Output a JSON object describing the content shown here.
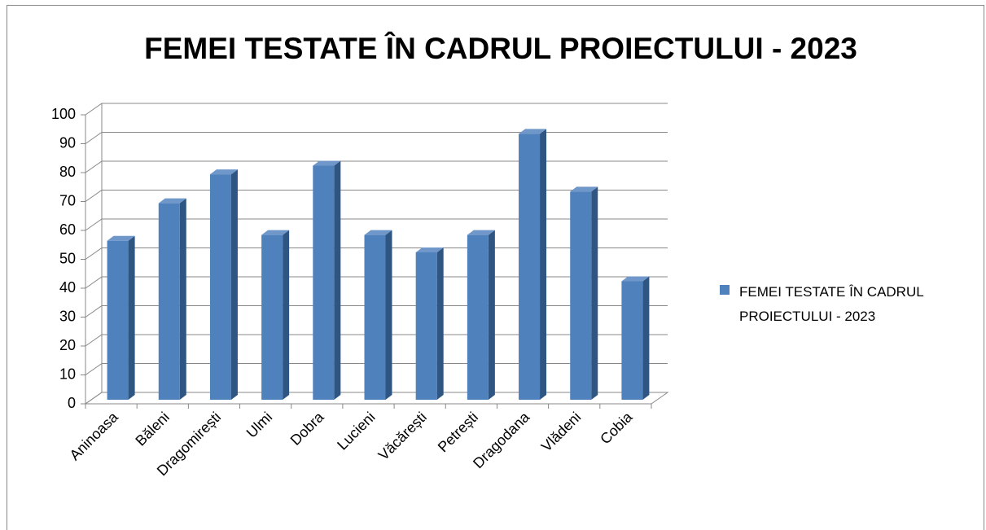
{
  "chart_data": {
    "type": "bar3d",
    "title": "FEMEI TESTATE ÎN CADRUL PROIECTULUI - 2023",
    "categories": [
      "Aninoasa",
      "Băleni",
      "Dragomirești",
      "Ulmi",
      "Dobra",
      "Lucieni",
      "Văcărești",
      "Petrești",
      "Dragodana",
      "Vlădeni",
      "Cobia"
    ],
    "series": [
      {
        "name": "FEMEI TESTATE ÎN CADRUL PROIECTULUI - 2023",
        "color": "#4f81bd",
        "values": [
          55,
          68,
          78,
          57,
          81,
          57,
          51,
          57,
          92,
          72,
          41
        ]
      }
    ],
    "ylim": [
      0,
      100
    ],
    "yticks": [
      0,
      10,
      20,
      30,
      40,
      50,
      60,
      70,
      80,
      90,
      100
    ],
    "grid": true,
    "legend": "right"
  }
}
